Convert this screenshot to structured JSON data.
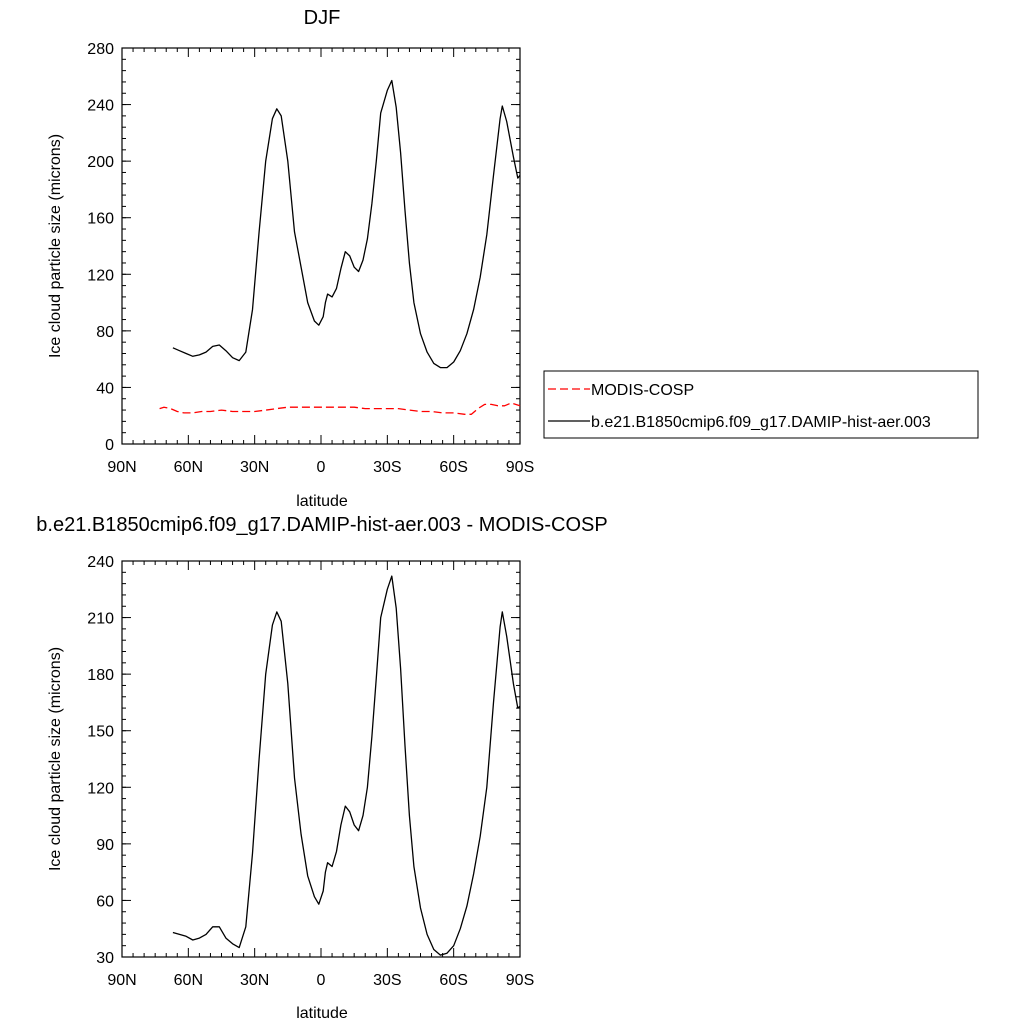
{
  "chart_data": [
    {
      "type": "line",
      "title": "DJF",
      "xlabel": "latitude",
      "ylabel": "Ice cloud particle size (microns)",
      "xlim": [
        90,
        -90
      ],
      "ylim": [
        0,
        280
      ],
      "xticks": [
        90,
        60,
        30,
        0,
        -30,
        -60,
        -90
      ],
      "xtick_labels": [
        "90N",
        "60N",
        "30N",
        "0",
        "30S",
        "60S",
        "90S"
      ],
      "yticks": [
        0,
        40,
        80,
        120,
        160,
        200,
        240,
        280
      ],
      "ytick_labels": [
        "0",
        "40",
        "80",
        "120",
        "160",
        "200",
        "240",
        "280"
      ],
      "grid": false,
      "legend": "right",
      "series": [
        {
          "name": "MODIS-COSP",
          "color": "#ff0000",
          "dash": "dashed",
          "points": [
            [
              73,
              25
            ],
            [
              71,
              26
            ],
            [
              68,
              25
            ],
            [
              65,
              23
            ],
            [
              62,
              22
            ],
            [
              58,
              22
            ],
            [
              54,
              23
            ],
            [
              50,
              23
            ],
            [
              45,
              24
            ],
            [
              40,
              23
            ],
            [
              35,
              23
            ],
            [
              30,
              23
            ],
            [
              25,
              24
            ],
            [
              20,
              25
            ],
            [
              15,
              26
            ],
            [
              10,
              26
            ],
            [
              5,
              26
            ],
            [
              0,
              26
            ],
            [
              -5,
              26
            ],
            [
              -10,
              26
            ],
            [
              -15,
              26
            ],
            [
              -20,
              25
            ],
            [
              -25,
              25
            ],
            [
              -30,
              25
            ],
            [
              -35,
              25
            ],
            [
              -40,
              24
            ],
            [
              -45,
              23
            ],
            [
              -50,
              23
            ],
            [
              -55,
              22
            ],
            [
              -60,
              22
            ],
            [
              -65,
              21
            ],
            [
              -68,
              21
            ],
            [
              -71,
              25
            ],
            [
              -74,
              28
            ],
            [
              -77,
              28
            ],
            [
              -80,
              27
            ],
            [
              -83,
              27
            ],
            [
              -86,
              29
            ],
            [
              -88,
              28
            ],
            [
              -90,
              27
            ]
          ]
        },
        {
          "name": "b.e21.B1850cmip6.f09_g17.DAMIP-hist-aer.003",
          "color": "#000000",
          "dash": "solid",
          "points": [
            [
              67,
              68
            ],
            [
              64,
              66
            ],
            [
              61,
              64
            ],
            [
              58,
              62
            ],
            [
              55,
              63
            ],
            [
              52,
              65
            ],
            [
              49,
              69
            ],
            [
              46,
              70
            ],
            [
              43,
              66
            ],
            [
              40,
              61
            ],
            [
              37,
              59
            ],
            [
              34,
              65
            ],
            [
              31,
              95
            ],
            [
              28,
              150
            ],
            [
              25,
              200
            ],
            [
              22,
              230
            ],
            [
              20,
              237
            ],
            [
              18,
              232
            ],
            [
              15,
              200
            ],
            [
              12,
              150
            ],
            [
              9,
              125
            ],
            [
              6,
              100
            ],
            [
              3,
              87
            ],
            [
              1,
              84
            ],
            [
              -1,
              90
            ],
            [
              -2,
              100
            ],
            [
              -3,
              106
            ],
            [
              -5,
              104
            ],
            [
              -7,
              110
            ],
            [
              -9,
              124
            ],
            [
              -11,
              136
            ],
            [
              -13,
              133
            ],
            [
              -15,
              125
            ],
            [
              -17,
              122
            ],
            [
              -19,
              130
            ],
            [
              -21,
              145
            ],
            [
              -23,
              170
            ],
            [
              -25,
              200
            ],
            [
              -27,
              234
            ],
            [
              -30,
              250
            ],
            [
              -32,
              257
            ],
            [
              -34,
              238
            ],
            [
              -36,
              206
            ],
            [
              -38,
              165
            ],
            [
              -40,
              128
            ],
            [
              -42,
              100
            ],
            [
              -45,
              78
            ],
            [
              -48,
              65
            ],
            [
              -51,
              57
            ],
            [
              -54,
              54
            ],
            [
              -57,
              54
            ],
            [
              -60,
              58
            ],
            [
              -63,
              66
            ],
            [
              -66,
              78
            ],
            [
              -69,
              95
            ],
            [
              -72,
              118
            ],
            [
              -75,
              148
            ],
            [
              -78,
              190
            ],
            [
              -81,
              230
            ],
            [
              -82,
              239
            ],
            [
              -84,
              228
            ],
            [
              -87,
              203
            ],
            [
              -89,
              188
            ],
            [
              -90,
              190
            ]
          ]
        }
      ]
    },
    {
      "type": "line",
      "title": "b.e21.B1850cmip6.f09_g17.DAMIP-hist-aer.003 - MODIS-COSP",
      "xlabel": "latitude",
      "ylabel": "Ice cloud particle size (microns)",
      "xlim": [
        90,
        -90
      ],
      "ylim": [
        30,
        240
      ],
      "xticks": [
        90,
        60,
        30,
        0,
        -30,
        -60,
        -90
      ],
      "xtick_labels": [
        "90N",
        "60N",
        "30N",
        "0",
        "30S",
        "60S",
        "90S"
      ],
      "yticks": [
        30,
        60,
        90,
        120,
        150,
        180,
        210,
        240
      ],
      "ytick_labels": [
        "30",
        "60",
        "90",
        "120",
        "150",
        "180",
        "210",
        "240"
      ],
      "grid": false,
      "series": [
        {
          "color": "#000000",
          "dash": "solid",
          "points": [
            [
              67,
              43
            ],
            [
              64,
              42
            ],
            [
              61,
              41
            ],
            [
              58,
              39
            ],
            [
              55,
              40
            ],
            [
              52,
              42
            ],
            [
              49,
              46
            ],
            [
              46,
              46
            ],
            [
              43,
              40
            ],
            [
              40,
              37
            ],
            [
              37,
              35
            ],
            [
              34,
              46
            ],
            [
              31,
              85
            ],
            [
              28,
              135
            ],
            [
              25,
              180
            ],
            [
              22,
              206
            ],
            [
              20,
              213
            ],
            [
              18,
              208
            ],
            [
              15,
              175
            ],
            [
              12,
              125
            ],
            [
              9,
              95
            ],
            [
              6,
              73
            ],
            [
              3,
              62
            ],
            [
              1,
              58
            ],
            [
              -1,
              65
            ],
            [
              -2,
              75
            ],
            [
              -3,
              80
            ],
            [
              -5,
              78
            ],
            [
              -7,
              86
            ],
            [
              -9,
              100
            ],
            [
              -11,
              110
            ],
            [
              -13,
              107
            ],
            [
              -15,
              100
            ],
            [
              -17,
              97
            ],
            [
              -19,
              105
            ],
            [
              -21,
              120
            ],
            [
              -23,
              147
            ],
            [
              -25,
              178
            ],
            [
              -27,
              210
            ],
            [
              -30,
              225
            ],
            [
              -32,
              232
            ],
            [
              -34,
              215
            ],
            [
              -36,
              183
            ],
            [
              -38,
              142
            ],
            [
              -40,
              105
            ],
            [
              -42,
              78
            ],
            [
              -45,
              56
            ],
            [
              -48,
              42
            ],
            [
              -51,
              34
            ],
            [
              -54,
              31
            ],
            [
              -57,
              32
            ],
            [
              -60,
              36
            ],
            [
              -63,
              45
            ],
            [
              -66,
              57
            ],
            [
              -69,
              74
            ],
            [
              -72,
              94
            ],
            [
              -75,
              120
            ],
            [
              -78,
              165
            ],
            [
              -81,
              205
            ],
            [
              -82,
              213
            ],
            [
              -84,
              200
            ],
            [
              -87,
              175
            ],
            [
              -89,
              162
            ],
            [
              -90,
              163
            ]
          ]
        }
      ]
    }
  ]
}
